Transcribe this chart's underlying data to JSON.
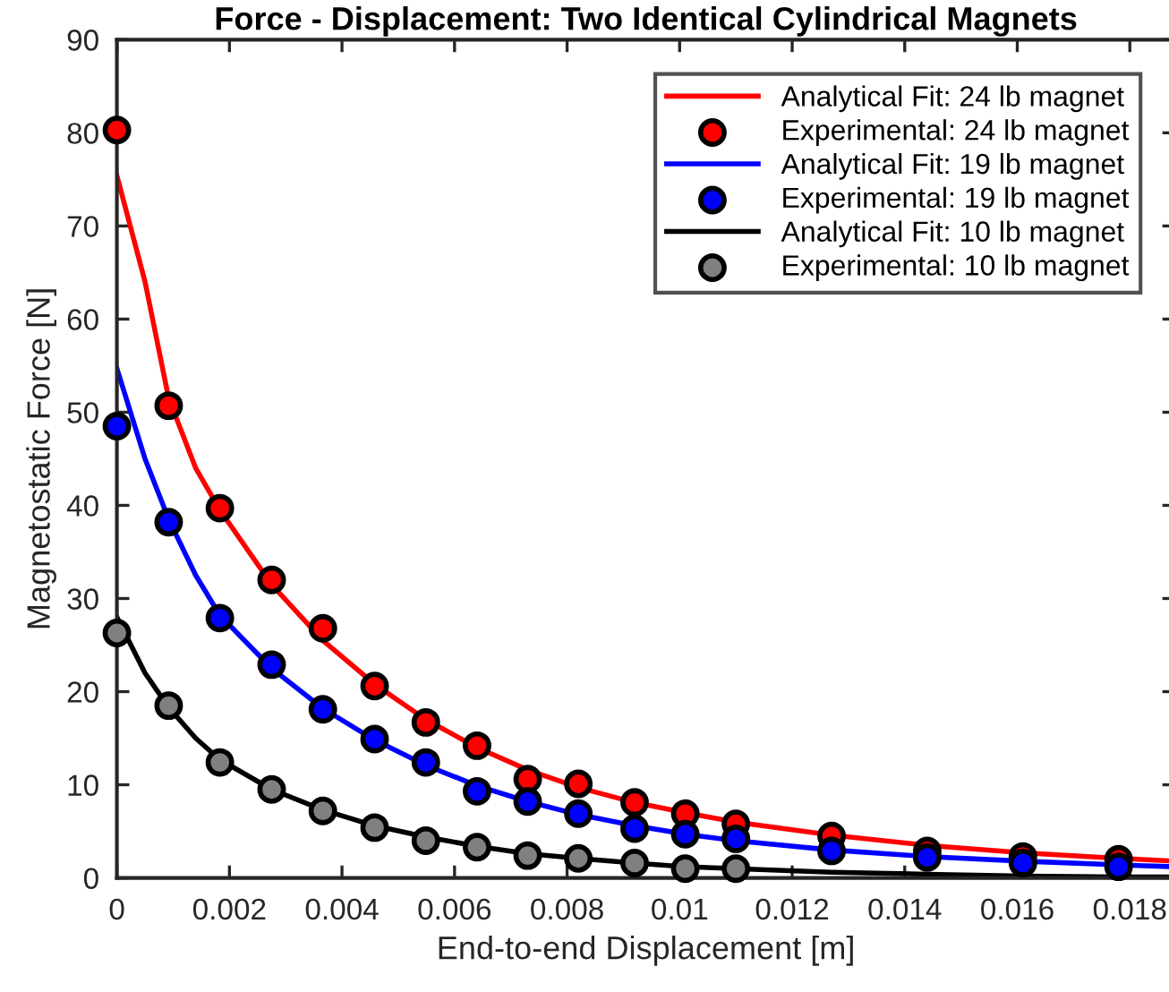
{
  "chart_data": {
    "type": "line",
    "title": "Force - Displacement: Two Identical Cylindrical Magnets",
    "xlabel": "End-to-end Displacement [m]",
    "ylabel": "Magnetostatic Force [N]",
    "xlim": [
      0,
      0.0188
    ],
    "ylim": [
      0,
      90
    ],
    "xticks": [
      0,
      0.002,
      0.004,
      0.006,
      0.008,
      0.01,
      0.012,
      0.014,
      0.016,
      0.018
    ],
    "yticks": [
      0,
      10,
      20,
      30,
      40,
      50,
      60,
      70,
      80,
      90
    ],
    "grid": false,
    "legend": "top right",
    "series": [
      {
        "name": "Analytical Fit: 24 lb magnet",
        "color": "#ff0000",
        "marker": "none",
        "x": [
          0,
          0.0005,
          0.00092,
          0.0014,
          0.00183,
          0.00275,
          0.00366,
          0.00458,
          0.00549,
          0.0064,
          0.0073,
          0.0082,
          0.0092,
          0.0101,
          0.011,
          0.0127,
          0.0144,
          0.0161,
          0.0178,
          0.0188
        ],
        "values": [
          75.4,
          64,
          51.5,
          44,
          39.5,
          31.5,
          25.5,
          20.8,
          17.0,
          14.0,
          11.6,
          9.7,
          8.1,
          7.0,
          6.0,
          4.6,
          3.5,
          2.7,
          2.1,
          1.8
        ]
      },
      {
        "name": "Experimental: 24 lb magnet",
        "type": "scatter",
        "color": "#ff0000",
        "marker": "circle",
        "x": [
          0,
          0.00092,
          0.00183,
          0.00275,
          0.00366,
          0.00458,
          0.00549,
          0.0064,
          0.0073,
          0.0082,
          0.0092,
          0.0101,
          0.011,
          0.0127,
          0.0144,
          0.0161,
          0.0178
        ],
        "values": [
          80.3,
          50.7,
          39.7,
          32.0,
          26.8,
          20.6,
          16.7,
          14.2,
          10.6,
          10.1,
          8.1,
          6.9,
          5.8,
          4.5,
          2.9,
          2.3,
          2.0
        ]
      },
      {
        "name": "Analytical Fit: 19 lb magnet",
        "color": "#0000ff",
        "marker": "none",
        "x": [
          0,
          0.0005,
          0.00092,
          0.0014,
          0.00183,
          0.00275,
          0.00366,
          0.00458,
          0.00549,
          0.0064,
          0.0073,
          0.0082,
          0.0092,
          0.0101,
          0.011,
          0.0127,
          0.0144,
          0.0161,
          0.0178,
          0.0188
        ],
        "values": [
          54.7,
          45,
          38.5,
          32.5,
          28.2,
          22.5,
          18.2,
          14.8,
          12.1,
          9.9,
          8.2,
          6.8,
          5.6,
          4.7,
          4.0,
          3.0,
          2.3,
          1.8,
          1.4,
          1.2
        ]
      },
      {
        "name": "Experimental: 19 lb magnet",
        "type": "scatter",
        "color": "#0000ff",
        "marker": "circle",
        "x": [
          0,
          0.00092,
          0.00183,
          0.00275,
          0.00366,
          0.00458,
          0.00549,
          0.0064,
          0.0073,
          0.0082,
          0.0092,
          0.0101,
          0.011,
          0.0127,
          0.0144,
          0.0161,
          0.0178
        ],
        "values": [
          48.5,
          38.2,
          27.9,
          22.9,
          18.1,
          14.9,
          12.4,
          9.3,
          8.2,
          6.9,
          5.3,
          4.7,
          4.2,
          2.9,
          2.2,
          1.6,
          1.2
        ]
      },
      {
        "name": "Analytical Fit: 10 lb magnet",
        "color": "#000000",
        "marker": "none",
        "x": [
          0,
          0.0005,
          0.00092,
          0.0014,
          0.00183,
          0.00275,
          0.00366,
          0.00458,
          0.00549,
          0.0064,
          0.0073,
          0.0082,
          0.0092,
          0.0101,
          0.011,
          0.0127,
          0.0144,
          0.0161,
          0.0178,
          0.0188
        ],
        "values": [
          28,
          22,
          18.3,
          15,
          12.7,
          9.5,
          7.3,
          5.6,
          4.4,
          3.4,
          2.6,
          2.1,
          1.6,
          1.2,
          1.0,
          0.6,
          0.4,
          0.2,
          0.1,
          0.1
        ]
      },
      {
        "name": "Experimental: 10 lb magnet",
        "type": "scatter",
        "color": "#808080",
        "marker": "circle",
        "x": [
          0,
          0.00092,
          0.00183,
          0.00275,
          0.00366,
          0.00458,
          0.00549,
          0.0064,
          0.0073,
          0.0082,
          0.0092,
          0.0101,
          0.011
        ],
        "values": [
          26.3,
          18.5,
          12.4,
          9.5,
          7.2,
          5.4,
          4.0,
          3.3,
          2.4,
          2.1,
          1.6,
          1.0,
          1.0
        ]
      }
    ]
  }
}
